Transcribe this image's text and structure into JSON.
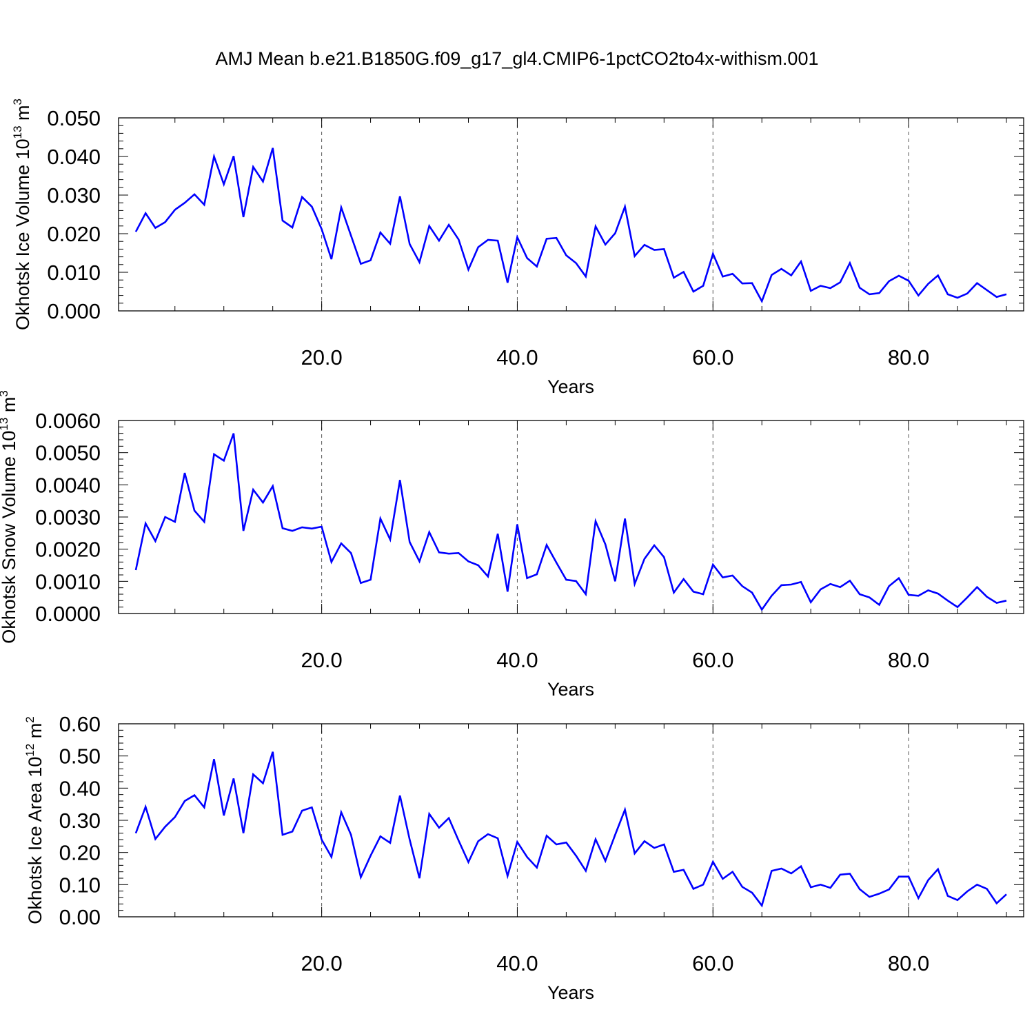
{
  "figure": {
    "title": "AMJ Mean b.e21.B1850G.f09_g17_gl4.CMIP6-1pctCO2to4x-withism.001"
  },
  "chart_data": [
    {
      "type": "line",
      "ylabel_main": "Okhotsk Ice Volume 10",
      "ylabel_exp": "13",
      "ylabel_unit": " m",
      "ylabel_unit_exp": "3",
      "xlabel": "Years",
      "xlim": [
        1,
        90
      ],
      "ylim": [
        0,
        0.05
      ],
      "y_decimals": 3,
      "y_major_step": 0.01,
      "x_ticks": [
        20,
        40,
        60,
        80
      ],
      "x_tick_labels": [
        "20.0",
        "40.0",
        "60.0",
        "80.0"
      ],
      "grid": "x-dashed",
      "line_color": "#0000ff",
      "x": [
        1,
        2,
        3,
        4,
        5,
        6,
        7,
        8,
        9,
        10,
        11,
        12,
        13,
        14,
        15,
        16,
        17,
        18,
        19,
        20,
        21,
        22,
        23,
        24,
        25,
        26,
        27,
        28,
        29,
        30,
        31,
        32,
        33,
        34,
        35,
        36,
        37,
        38,
        39,
        40,
        41,
        42,
        43,
        44,
        45,
        46,
        47,
        48,
        49,
        50,
        51,
        52,
        53,
        54,
        55,
        56,
        57,
        58,
        59,
        60,
        61,
        62,
        63,
        64,
        65,
        66,
        67,
        68,
        69,
        70,
        71,
        72,
        73,
        74,
        75,
        76,
        77,
        78,
        79,
        80,
        81,
        82,
        83,
        84,
        85,
        86,
        87,
        88,
        89,
        90
      ],
      "values": [
        0.0205,
        0.0253,
        0.0215,
        0.023,
        0.0262,
        0.028,
        0.0302,
        0.0275,
        0.04,
        0.0328,
        0.0401,
        0.0243,
        0.0373,
        0.0335,
        0.0422,
        0.0234,
        0.0216,
        0.0295,
        0.027,
        0.0212,
        0.0134,
        0.0268,
        0.0195,
        0.0122,
        0.0131,
        0.0203,
        0.0174,
        0.0297,
        0.0173,
        0.0126,
        0.022,
        0.0182,
        0.0223,
        0.0185,
        0.0107,
        0.0165,
        0.0184,
        0.0182,
        0.0073,
        0.0191,
        0.0137,
        0.0115,
        0.0187,
        0.0189,
        0.0144,
        0.0124,
        0.0089,
        0.0219,
        0.0172,
        0.0201,
        0.027,
        0.0142,
        0.0171,
        0.0158,
        0.016,
        0.0086,
        0.0101,
        0.005,
        0.0065,
        0.0148,
        0.0089,
        0.0096,
        0.0071,
        0.0072,
        0.0025,
        0.0093,
        0.0109,
        0.0092,
        0.0128,
        0.0052,
        0.0065,
        0.0059,
        0.0074,
        0.0124,
        0.006,
        0.0043,
        0.0046,
        0.0077,
        0.0091,
        0.0078,
        0.004,
        0.007,
        0.0092,
        0.0043,
        0.0034,
        0.0045,
        0.0072,
        0.0054,
        0.0036,
        0.0043
      ]
    },
    {
      "type": "line",
      "ylabel_main": "Okhotsk Snow Volume 10",
      "ylabel_exp": "13",
      "ylabel_unit": " m",
      "ylabel_unit_exp": "3",
      "xlabel": "Years",
      "xlim": [
        1,
        90
      ],
      "ylim": [
        0,
        0.006
      ],
      "y_decimals": 4,
      "y_major_step": 0.001,
      "x_ticks": [
        20,
        40,
        60,
        80
      ],
      "x_tick_labels": [
        "20.0",
        "40.0",
        "60.0",
        "80.0"
      ],
      "grid": "x-dashed",
      "line_color": "#0000ff",
      "x": [
        1,
        2,
        3,
        4,
        5,
        6,
        7,
        8,
        9,
        10,
        11,
        12,
        13,
        14,
        15,
        16,
        17,
        18,
        19,
        20,
        21,
        22,
        23,
        24,
        25,
        26,
        27,
        28,
        29,
        30,
        31,
        32,
        33,
        34,
        35,
        36,
        37,
        38,
        39,
        40,
        41,
        42,
        43,
        44,
        45,
        46,
        47,
        48,
        49,
        50,
        51,
        52,
        53,
        54,
        55,
        56,
        57,
        58,
        59,
        60,
        61,
        62,
        63,
        64,
        65,
        66,
        67,
        68,
        69,
        70,
        71,
        72,
        73,
        74,
        75,
        76,
        77,
        78,
        79,
        80,
        81,
        82,
        83,
        84,
        85,
        86,
        87,
        88,
        89,
        90
      ],
      "values": [
        0.00135,
        0.0028,
        0.00225,
        0.003,
        0.00285,
        0.00437,
        0.0032,
        0.00285,
        0.00495,
        0.00475,
        0.0056,
        0.00257,
        0.00385,
        0.00345,
        0.00396,
        0.00265,
        0.00257,
        0.00268,
        0.00264,
        0.0027,
        0.0016,
        0.00218,
        0.00188,
        0.00095,
        0.00105,
        0.00295,
        0.0023,
        0.00415,
        0.00222,
        0.00162,
        0.00253,
        0.0019,
        0.00186,
        0.00188,
        0.00162,
        0.0015,
        0.00115,
        0.00248,
        0.00068,
        0.00277,
        0.0011,
        0.00122,
        0.00213,
        0.00158,
        0.00105,
        0.00101,
        0.0006,
        0.00287,
        0.00215,
        0.001,
        0.00295,
        0.00092,
        0.0017,
        0.00212,
        0.00175,
        0.00065,
        0.00107,
        0.00068,
        0.0006,
        0.00152,
        0.00112,
        0.00118,
        0.00085,
        0.00065,
        0.00012,
        0.00055,
        0.00088,
        0.0009,
        0.00098,
        0.00035,
        0.00075,
        0.00092,
        0.00082,
        0.00102,
        0.0006,
        0.0005,
        0.00027,
        0.00085,
        0.0011,
        0.00058,
        0.00055,
        0.00072,
        0.00062,
        0.0004,
        0.0002,
        0.0005,
        0.00082,
        0.00052,
        0.00033,
        0.0004
      ]
    },
    {
      "type": "line",
      "ylabel_main": "Okhotsk Ice Area 10",
      "ylabel_exp": "12",
      "ylabel_unit": " m",
      "ylabel_unit_exp": "2",
      "xlabel": "Years",
      "xlim": [
        1,
        90
      ],
      "ylim": [
        0,
        0.6
      ],
      "y_decimals": 2,
      "y_major_step": 0.1,
      "x_ticks": [
        20,
        40,
        60,
        80
      ],
      "x_tick_labels": [
        "20.0",
        "40.0",
        "60.0",
        "80.0"
      ],
      "grid": "x-dashed",
      "line_color": "#0000ff",
      "x": [
        1,
        2,
        3,
        4,
        5,
        6,
        7,
        8,
        9,
        10,
        11,
        12,
        13,
        14,
        15,
        16,
        17,
        18,
        19,
        20,
        21,
        22,
        23,
        24,
        25,
        26,
        27,
        28,
        29,
        30,
        31,
        32,
        33,
        34,
        35,
        36,
        37,
        38,
        39,
        40,
        41,
        42,
        43,
        44,
        45,
        46,
        47,
        48,
        49,
        50,
        51,
        52,
        53,
        54,
        55,
        56,
        57,
        58,
        59,
        60,
        61,
        62,
        63,
        64,
        65,
        66,
        67,
        68,
        69,
        70,
        71,
        72,
        73,
        74,
        75,
        76,
        77,
        78,
        79,
        80,
        81,
        82,
        83,
        84,
        85,
        86,
        87,
        88,
        89,
        90
      ],
      "values": [
        0.26,
        0.342,
        0.242,
        0.28,
        0.31,
        0.36,
        0.378,
        0.34,
        0.49,
        0.315,
        0.43,
        0.26,
        0.443,
        0.415,
        0.513,
        0.255,
        0.265,
        0.33,
        0.34,
        0.24,
        0.186,
        0.325,
        0.255,
        0.123,
        0.19,
        0.25,
        0.23,
        0.377,
        0.24,
        0.12,
        0.32,
        0.277,
        0.307,
        0.237,
        0.17,
        0.235,
        0.257,
        0.244,
        0.127,
        0.233,
        0.186,
        0.153,
        0.252,
        0.225,
        0.231,
        0.19,
        0.143,
        0.241,
        0.174,
        0.255,
        0.333,
        0.197,
        0.235,
        0.214,
        0.225,
        0.14,
        0.146,
        0.087,
        0.1,
        0.171,
        0.118,
        0.14,
        0.093,
        0.075,
        0.035,
        0.143,
        0.15,
        0.135,
        0.157,
        0.092,
        0.1,
        0.09,
        0.131,
        0.134,
        0.086,
        0.062,
        0.072,
        0.085,
        0.125,
        0.125,
        0.058,
        0.114,
        0.148,
        0.065,
        0.052,
        0.079,
        0.1,
        0.087,
        0.042,
        0.07
      ]
    }
  ]
}
